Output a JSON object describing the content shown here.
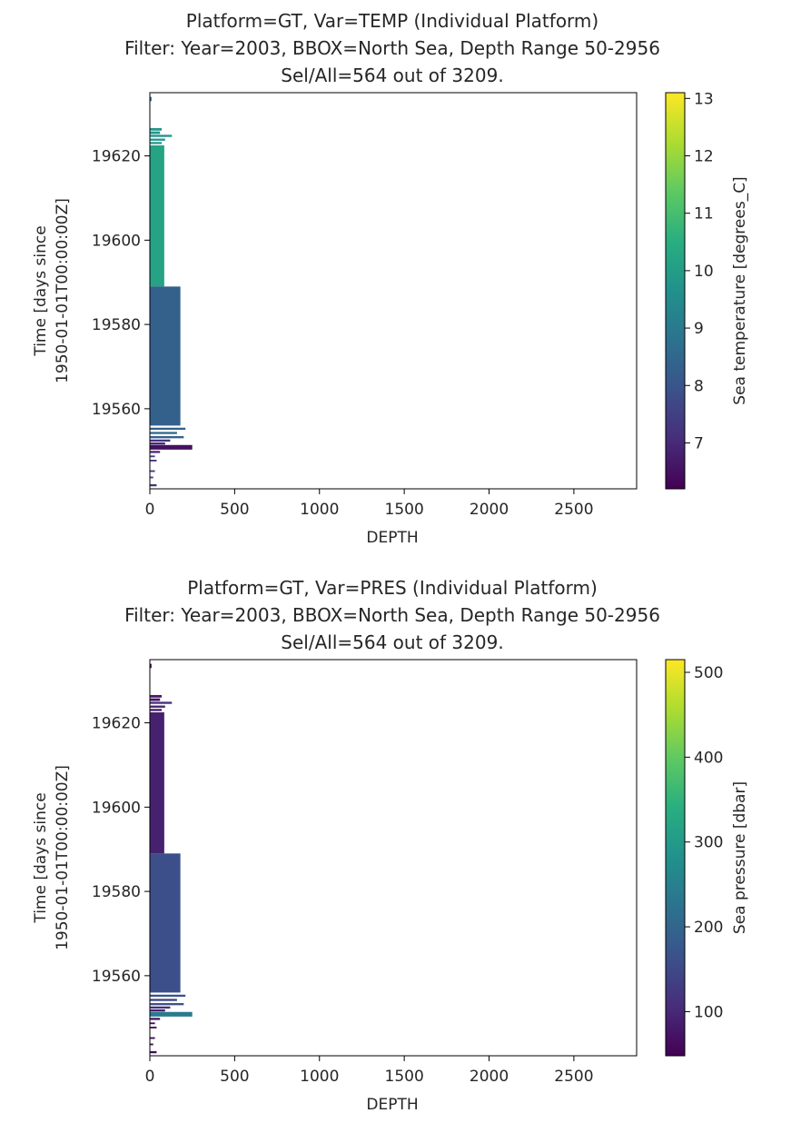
{
  "chart_data": [
    {
      "type": "heatmap",
      "title_lines": [
        "Platform=GT, Var=TEMP (Individual Platform)",
        "Filter: Year=2003, BBOX=North Sea, Depth Range 50-2956",
        "Sel/All=564 out of 3209."
      ],
      "xlabel": "DEPTH",
      "ylabel_lines": [
        "Time [days since",
        "1950-01-01T00:00:00Z]"
      ],
      "xlim": [
        0,
        2870
      ],
      "ylim": [
        19541,
        19635
      ],
      "x_ticks": [
        0,
        500,
        1000,
        1500,
        2000,
        2500
      ],
      "y_ticks": [
        19560,
        19580,
        19600,
        19620
      ],
      "colorbar": {
        "label": "Sea temperature [degrees_C]",
        "range": [
          6.2,
          13.1
        ],
        "ticks": [
          7,
          8,
          9,
          10,
          11,
          12,
          13
        ],
        "colormap": "viridis"
      },
      "segments": [
        {
          "t0": 19633,
          "t1": 19634,
          "depth": 10,
          "value": 8.6
        },
        {
          "t0": 19626.0,
          "t1": 19626.6,
          "depth": 70,
          "value": 9.8
        },
        {
          "t0": 19625.2,
          "t1": 19625.8,
          "depth": 60,
          "value": 9.8
        },
        {
          "t0": 19624.5,
          "t1": 19625.0,
          "depth": 130,
          "value": 9.7
        },
        {
          "t0": 19623.6,
          "t1": 19624.1,
          "depth": 90,
          "value": 9.8
        },
        {
          "t0": 19622.8,
          "t1": 19623.3,
          "depth": 70,
          "value": 9.9
        },
        {
          "t0": 19589,
          "t1": 19622.5,
          "depth": 85,
          "value": 10.2
        },
        {
          "t0": 19556,
          "t1": 19589,
          "depth": 180,
          "value": 8.3
        },
        {
          "t0": 19555.0,
          "t1": 19555.5,
          "depth": 210,
          "value": 8.3
        },
        {
          "t0": 19554.0,
          "t1": 19554.5,
          "depth": 160,
          "value": 8.5
        },
        {
          "t0": 19553.0,
          "t1": 19553.5,
          "depth": 200,
          "value": 8.3
        },
        {
          "t0": 19552.2,
          "t1": 19552.7,
          "depth": 120,
          "value": 7.2
        },
        {
          "t0": 19551.5,
          "t1": 19552.0,
          "depth": 90,
          "value": 7.0
        },
        {
          "t0": 19550.3,
          "t1": 19551.4,
          "depth": 250,
          "value": 6.5
        },
        {
          "t0": 19549.5,
          "t1": 19550.0,
          "depth": 60,
          "value": 7.0
        },
        {
          "t0": 19548.5,
          "t1": 19548.9,
          "depth": 30,
          "value": 7.5
        },
        {
          "t0": 19547.5,
          "t1": 19547.9,
          "depth": 40,
          "value": 7.3
        },
        {
          "t0": 19545.0,
          "t1": 19545.4,
          "depth": 30,
          "value": 7.4
        },
        {
          "t0": 19543.5,
          "t1": 19543.9,
          "depth": 20,
          "value": 7.5
        },
        {
          "t0": 19541.6,
          "t1": 19542.1,
          "depth": 40,
          "value": 7.2
        }
      ]
    },
    {
      "type": "heatmap",
      "title_lines": [
        "Platform=GT, Var=PRES (Individual Platform)",
        "Filter: Year=2003, BBOX=North Sea, Depth Range 50-2956",
        "Sel/All=564 out of 3209."
      ],
      "xlabel": "DEPTH",
      "ylabel_lines": [
        "Time [days since",
        "1950-01-01T00:00:00Z]"
      ],
      "xlim": [
        0,
        2870
      ],
      "ylim": [
        19541,
        19635
      ],
      "x_ticks": [
        0,
        500,
        1000,
        1500,
        2000,
        2500
      ],
      "y_ticks": [
        19560,
        19580,
        19600,
        19620
      ],
      "colorbar": {
        "label": "Sea pressure [dbar]",
        "range": [
          48,
          515
        ],
        "ticks": [
          100,
          200,
          300,
          400,
          500
        ],
        "colormap": "viridis"
      },
      "segments": [
        {
          "t0": 19633,
          "t1": 19634,
          "depth": 10,
          "value": 60
        },
        {
          "t0": 19626.0,
          "t1": 19626.6,
          "depth": 70,
          "value": 80
        },
        {
          "t0": 19625.2,
          "t1": 19625.8,
          "depth": 60,
          "value": 75
        },
        {
          "t0": 19624.5,
          "t1": 19625.0,
          "depth": 130,
          "value": 110
        },
        {
          "t0": 19623.6,
          "t1": 19624.1,
          "depth": 90,
          "value": 90
        },
        {
          "t0": 19622.8,
          "t1": 19623.3,
          "depth": 70,
          "value": 80
        },
        {
          "t0": 19589,
          "t1": 19622.5,
          "depth": 85,
          "value": 90
        },
        {
          "t0": 19556,
          "t1": 19589,
          "depth": 180,
          "value": 160
        },
        {
          "t0": 19555.0,
          "t1": 19555.5,
          "depth": 210,
          "value": 170
        },
        {
          "t0": 19554.0,
          "t1": 19554.5,
          "depth": 160,
          "value": 140
        },
        {
          "t0": 19553.0,
          "t1": 19553.5,
          "depth": 200,
          "value": 165
        },
        {
          "t0": 19552.2,
          "t1": 19552.7,
          "depth": 120,
          "value": 110
        },
        {
          "t0": 19551.5,
          "t1": 19552.0,
          "depth": 90,
          "value": 90
        },
        {
          "t0": 19550.3,
          "t1": 19551.4,
          "depth": 250,
          "value": 240
        },
        {
          "t0": 19549.5,
          "t1": 19550.0,
          "depth": 60,
          "value": 75
        },
        {
          "t0": 19548.5,
          "t1": 19548.9,
          "depth": 30,
          "value": 60
        },
        {
          "t0": 19547.5,
          "t1": 19547.9,
          "depth": 40,
          "value": 62
        },
        {
          "t0": 19545.0,
          "t1": 19545.4,
          "depth": 30,
          "value": 60
        },
        {
          "t0": 19543.5,
          "t1": 19543.9,
          "depth": 20,
          "value": 56
        },
        {
          "t0": 19541.6,
          "t1": 19542.1,
          "depth": 40,
          "value": 62
        }
      ]
    }
  ]
}
